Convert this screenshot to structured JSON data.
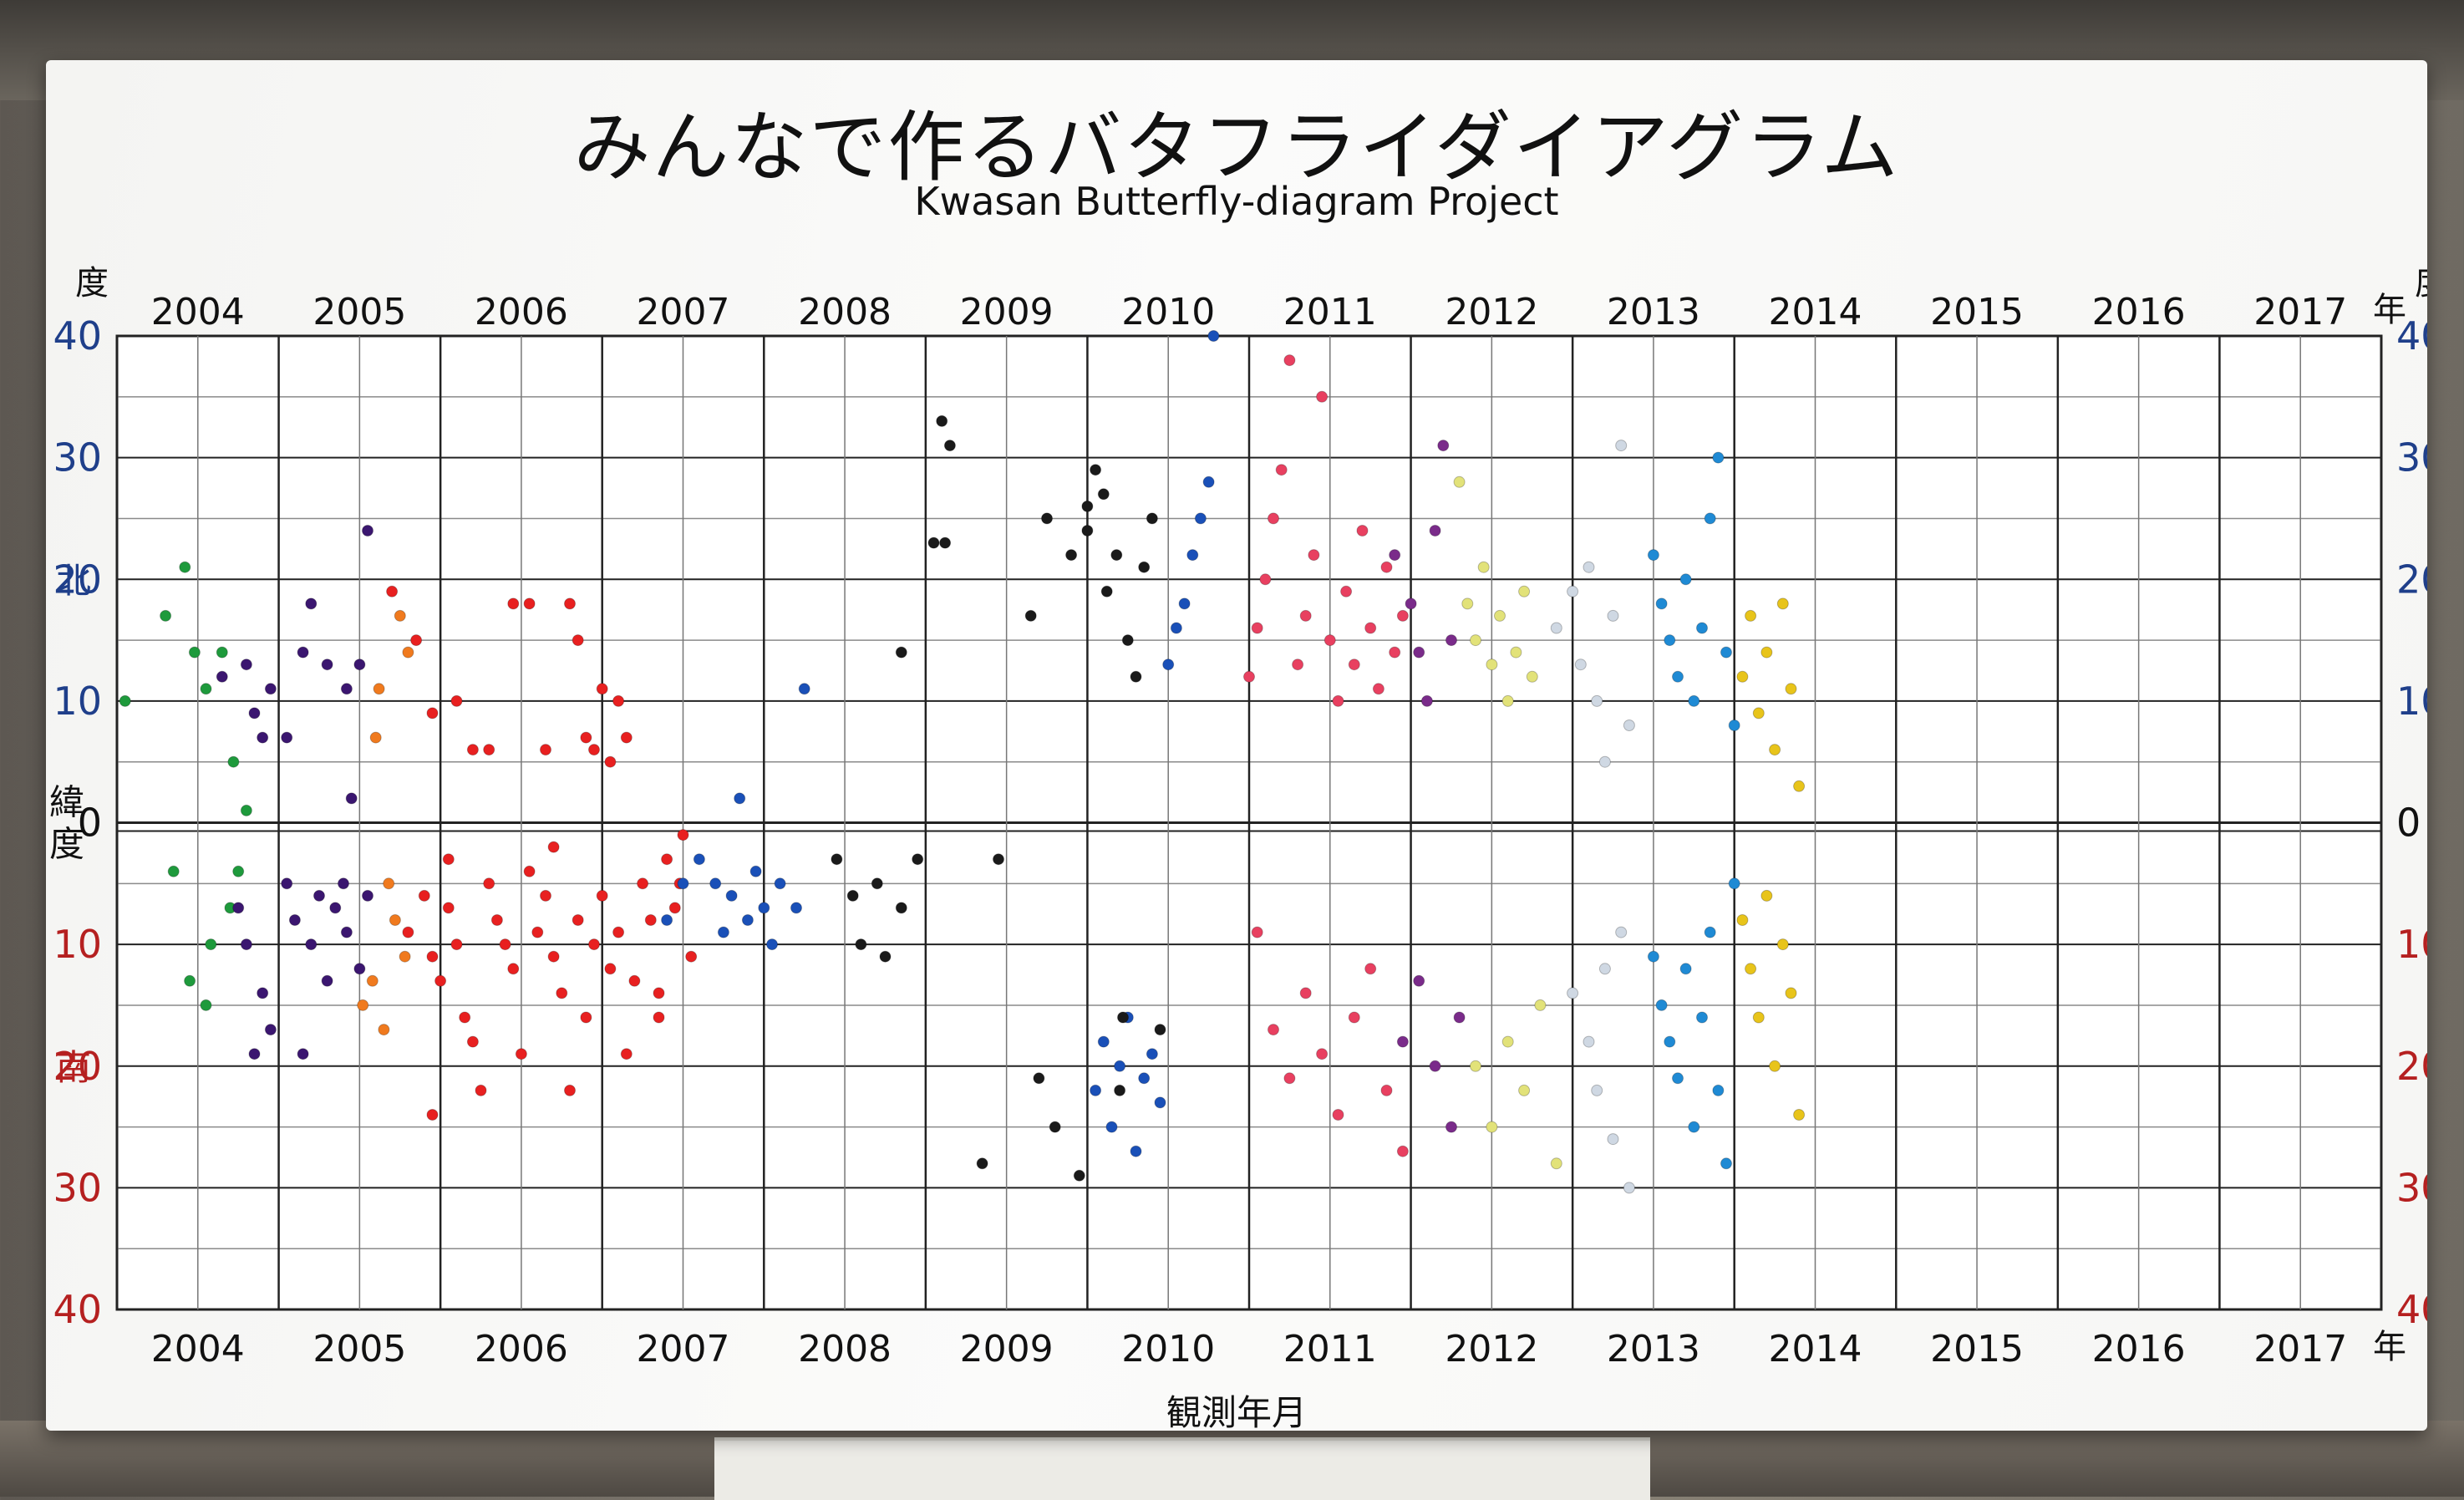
{
  "title": "みんなで作るバタフライダイアグラム",
  "subtitle": "Kwasan Butterfly-diagram Project",
  "colors": {
    "north_label": "#1f3f8a",
    "south_label": "#b52020",
    "grid_major": "#222222",
    "grid_minor": "#c8c8c8"
  },
  "chart_data": {
    "type": "scatter",
    "title": "みんなで作るバタフライダイアグラム",
    "subtitle": "Kwasan Butterfly-diagram Project",
    "xlabel": "観測年月",
    "years": [
      "2004",
      "2005",
      "2006",
      "2007",
      "2008",
      "2009",
      "2010",
      "2011",
      "2012",
      "2013",
      "2014",
      "2015",
      "2016",
      "2017"
    ],
    "year_suffix": "年",
    "y_axis_unit": "度",
    "y_axis_label": "緯度",
    "north_label": "北",
    "south_label": "南",
    "north_ticks": [
      "40",
      "30",
      "20",
      "10"
    ],
    "zero_tick": "0",
    "south_ticks": [
      "10",
      "20",
      "30",
      "40"
    ],
    "xlim": [
      2004,
      2018
    ],
    "ylim": [
      -40,
      40
    ],
    "grid": true,
    "y_direction": "north positive (top), south negative (bottom)",
    "series": [
      {
        "color": "#1e9a3c",
        "points": [
          [
            2004.05,
            10
          ],
          [
            2004.3,
            17
          ],
          [
            2004.42,
            21
          ],
          [
            2004.48,
            14
          ],
          [
            2004.55,
            11
          ],
          [
            2004.65,
            14
          ],
          [
            2004.7,
            -7
          ],
          [
            2004.58,
            -10
          ],
          [
            2004.45,
            -13
          ],
          [
            2004.35,
            -4
          ],
          [
            2004.55,
            -15
          ],
          [
            2004.72,
            5
          ],
          [
            2004.8,
            1
          ],
          [
            2004.75,
            -4
          ]
        ]
      },
      {
        "color": "#3b1670",
        "points": [
          [
            2004.65,
            12
          ],
          [
            2004.8,
            13
          ],
          [
            2004.85,
            9
          ],
          [
            2004.95,
            11
          ],
          [
            2004.9,
            7
          ],
          [
            2005.05,
            7
          ],
          [
            2005.15,
            14
          ],
          [
            2005.2,
            18
          ],
          [
            2005.3,
            13
          ],
          [
            2005.42,
            11
          ],
          [
            2005.5,
            13
          ],
          [
            2005.55,
            24
          ],
          [
            2004.75,
            -7
          ],
          [
            2004.8,
            -10
          ],
          [
            2004.9,
            -14
          ],
          [
            2004.95,
            -17
          ],
          [
            2004.85,
            -19
          ],
          [
            2005.05,
            -5
          ],
          [
            2005.1,
            -8
          ],
          [
            2005.2,
            -10
          ],
          [
            2005.25,
            -6
          ],
          [
            2005.35,
            -7
          ],
          [
            2005.42,
            -9
          ],
          [
            2005.5,
            -12
          ],
          [
            2005.4,
            -5
          ],
          [
            2005.55,
            -6
          ],
          [
            2005.3,
            -13
          ],
          [
            2005.15,
            -19
          ],
          [
            2005.45,
            2
          ]
        ]
      },
      {
        "color": "#f07a1e",
        "points": [
          [
            2005.62,
            11
          ],
          [
            2005.75,
            17
          ],
          [
            2005.8,
            14
          ],
          [
            2005.6,
            7
          ],
          [
            2005.68,
            -5
          ],
          [
            2005.72,
            -8
          ],
          [
            2005.58,
            -13
          ],
          [
            2005.65,
            -17
          ],
          [
            2005.52,
            -15
          ],
          [
            2005.78,
            -11
          ]
        ]
      },
      {
        "color": "#e82020",
        "points": [
          [
            2005.7,
            19
          ],
          [
            2005.85,
            15
          ],
          [
            2005.95,
            9
          ],
          [
            2006.1,
            10
          ],
          [
            2006.2,
            6
          ],
          [
            2006.3,
            6
          ],
          [
            2006.45,
            18
          ],
          [
            2006.55,
            18
          ],
          [
            2006.65,
            6
          ],
          [
            2006.85,
            15
          ],
          [
            2006.9,
            7
          ],
          [
            2006.8,
            18
          ],
          [
            2007.05,
            5
          ],
          [
            2007.0,
            11
          ],
          [
            2006.95,
            6
          ],
          [
            2007.1,
            10
          ],
          [
            2007.15,
            7
          ],
          [
            2005.8,
            -9
          ],
          [
            2005.9,
            -6
          ],
          [
            2005.95,
            -11
          ],
          [
            2006.0,
            -13
          ],
          [
            2006.05,
            -7
          ],
          [
            2006.1,
            -10
          ],
          [
            2006.15,
            -16
          ],
          [
            2006.2,
            -18
          ],
          [
            2006.25,
            -22
          ],
          [
            2006.3,
            -5
          ],
          [
            2006.35,
            -8
          ],
          [
            2006.4,
            -10
          ],
          [
            2006.45,
            -12
          ],
          [
            2006.5,
            -19
          ],
          [
            2006.55,
            -4
          ],
          [
            2006.6,
            -9
          ],
          [
            2006.65,
            -6
          ],
          [
            2006.7,
            -11
          ],
          [
            2006.75,
            -14
          ],
          [
            2006.8,
            -22
          ],
          [
            2006.85,
            -8
          ],
          [
            2006.9,
            -16
          ],
          [
            2006.95,
            -10
          ],
          [
            2007.0,
            -6
          ],
          [
            2007.05,
            -12
          ],
          [
            2007.1,
            -9
          ],
          [
            2007.15,
            -19
          ],
          [
            2007.2,
            -13
          ],
          [
            2007.25,
            -5
          ],
          [
            2007.3,
            -8
          ],
          [
            2007.35,
            -14
          ],
          [
            2007.4,
            -3
          ],
          [
            2007.45,
            -7
          ],
          [
            2007.5,
            -1
          ],
          [
            2007.55,
            -11
          ],
          [
            2005.95,
            -24
          ],
          [
            2006.05,
            -3
          ],
          [
            2006.7,
            -2
          ],
          [
            2007.48,
            -5
          ],
          [
            2007.35,
            -16
          ]
        ]
      },
      {
        "color": "#1a50b8",
        "points": [
          [
            2007.4,
            -8
          ],
          [
            2007.5,
            -5
          ],
          [
            2007.6,
            -3
          ],
          [
            2007.7,
            -5
          ],
          [
            2007.75,
            -9
          ],
          [
            2007.8,
            -6
          ],
          [
            2007.85,
            2
          ],
          [
            2007.9,
            -8
          ],
          [
            2007.95,
            -4
          ],
          [
            2008.0,
            -7
          ],
          [
            2008.05,
            -10
          ],
          [
            2008.1,
            -5
          ],
          [
            2008.2,
            -7
          ],
          [
            2008.25,
            11
          ],
          [
            2010.05,
            -22
          ],
          [
            2010.1,
            -18
          ],
          [
            2010.15,
            -25
          ],
          [
            2010.2,
            -20
          ],
          [
            2010.25,
            -16
          ],
          [
            2010.3,
            -27
          ],
          [
            2010.35,
            -21
          ],
          [
            2010.4,
            -19
          ],
          [
            2010.45,
            -23
          ],
          [
            2010.55,
            16
          ],
          [
            2010.6,
            18
          ],
          [
            2010.65,
            22
          ],
          [
            2010.7,
            25
          ],
          [
            2010.75,
            28
          ],
          [
            2010.78,
            40
          ],
          [
            2010.5,
            13
          ]
        ]
      },
      {
        "color": "#1a1a1a",
        "points": [
          [
            2008.45,
            -3
          ],
          [
            2008.55,
            -6
          ],
          [
            2008.6,
            -10
          ],
          [
            2008.7,
            -5
          ],
          [
            2008.75,
            -11
          ],
          [
            2008.85,
            -7
          ],
          [
            2008.95,
            -3
          ],
          [
            2008.85,
            14
          ],
          [
            2009.05,
            23
          ],
          [
            2009.1,
            33
          ],
          [
            2009.15,
            31
          ],
          [
            2009.12,
            23
          ],
          [
            2009.35,
            -28
          ],
          [
            2009.45,
            -3
          ],
          [
            2009.65,
            17
          ],
          [
            2009.7,
            -21
          ],
          [
            2009.75,
            25
          ],
          [
            2009.8,
            -25
          ],
          [
            2009.9,
            22
          ],
          [
            2009.95,
            -29
          ],
          [
            2010.0,
            24
          ],
          [
            2010.0,
            26
          ],
          [
            2010.05,
            29
          ],
          [
            2010.1,
            27
          ],
          [
            2010.12,
            19
          ],
          [
            2010.18,
            22
          ],
          [
            2010.2,
            -22
          ],
          [
            2010.22,
            -16
          ],
          [
            2010.25,
            15
          ],
          [
            2010.3,
            12
          ],
          [
            2010.35,
            21
          ],
          [
            2010.4,
            25
          ],
          [
            2010.45,
            -17
          ]
        ]
      },
      {
        "color": "#e84060",
        "points": [
          [
            2011.0,
            12
          ],
          [
            2011.05,
            16
          ],
          [
            2011.1,
            20
          ],
          [
            2011.15,
            25
          ],
          [
            2011.2,
            29
          ],
          [
            2011.25,
            38
          ],
          [
            2011.3,
            13
          ],
          [
            2011.35,
            17
          ],
          [
            2011.4,
            22
          ],
          [
            2011.45,
            35
          ],
          [
            2011.5,
            15
          ],
          [
            2011.55,
            10
          ],
          [
            2011.6,
            19
          ],
          [
            2011.65,
            13
          ],
          [
            2011.7,
            24
          ],
          [
            2011.75,
            16
          ],
          [
            2011.8,
            11
          ],
          [
            2011.85,
            21
          ],
          [
            2011.9,
            14
          ],
          [
            2011.95,
            17
          ],
          [
            2011.05,
            -9
          ],
          [
            2011.15,
            -17
          ],
          [
            2011.25,
            -21
          ],
          [
            2011.35,
            -14
          ],
          [
            2011.45,
            -19
          ],
          [
            2011.55,
            -24
          ],
          [
            2011.65,
            -16
          ],
          [
            2011.75,
            -12
          ],
          [
            2011.85,
            -22
          ],
          [
            2011.95,
            -27
          ]
        ]
      },
      {
        "color": "#7a2b8a",
        "points": [
          [
            2011.9,
            22
          ],
          [
            2012.0,
            18
          ],
          [
            2012.05,
            14
          ],
          [
            2012.1,
            10
          ],
          [
            2012.15,
            24
          ],
          [
            2012.2,
            31
          ],
          [
            2012.25,
            15
          ],
          [
            2011.95,
            -18
          ],
          [
            2012.05,
            -13
          ],
          [
            2012.15,
            -20
          ],
          [
            2012.25,
            -25
          ],
          [
            2012.3,
            -16
          ]
        ]
      },
      {
        "color": "#e2e279",
        "points": [
          [
            2012.3,
            28
          ],
          [
            2012.35,
            18
          ],
          [
            2012.4,
            15
          ],
          [
            2012.45,
            21
          ],
          [
            2012.5,
            13
          ],
          [
            2012.55,
            17
          ],
          [
            2012.6,
            10
          ],
          [
            2012.65,
            14
          ],
          [
            2012.7,
            19
          ],
          [
            2012.75,
            12
          ],
          [
            2012.4,
            -20
          ],
          [
            2012.5,
            -25
          ],
          [
            2012.6,
            -18
          ],
          [
            2012.7,
            -22
          ],
          [
            2012.8,
            -15
          ],
          [
            2012.9,
            -28
          ]
        ]
      },
      {
        "color": "#cfd8e3",
        "points": [
          [
            2012.9,
            16
          ],
          [
            2013.0,
            19
          ],
          [
            2013.05,
            13
          ],
          [
            2013.1,
            21
          ],
          [
            2013.15,
            10
          ],
          [
            2013.2,
            5
          ],
          [
            2013.25,
            17
          ],
          [
            2013.3,
            31
          ],
          [
            2013.35,
            8
          ],
          [
            2013.0,
            -14
          ],
          [
            2013.1,
            -18
          ],
          [
            2013.15,
            -22
          ],
          [
            2013.2,
            -12
          ],
          [
            2013.25,
            -26
          ],
          [
            2013.3,
            -9
          ],
          [
            2013.35,
            -30
          ]
        ]
      },
      {
        "color": "#1f8ad4",
        "points": [
          [
            2013.5,
            22
          ],
          [
            2013.55,
            18
          ],
          [
            2013.6,
            15
          ],
          [
            2013.65,
            12
          ],
          [
            2013.7,
            20
          ],
          [
            2013.75,
            10
          ],
          [
            2013.8,
            16
          ],
          [
            2013.85,
            25
          ],
          [
            2013.9,
            30
          ],
          [
            2013.95,
            14
          ],
          [
            2014.0,
            8
          ],
          [
            2013.5,
            -11
          ],
          [
            2013.55,
            -15
          ],
          [
            2013.6,
            -18
          ],
          [
            2013.65,
            -21
          ],
          [
            2013.7,
            -12
          ],
          [
            2013.75,
            -25
          ],
          [
            2013.8,
            -16
          ],
          [
            2013.85,
            -9
          ],
          [
            2013.9,
            -22
          ],
          [
            2013.95,
            -28
          ],
          [
            2014.0,
            -5
          ]
        ]
      },
      {
        "color": "#e8c41a",
        "points": [
          [
            2014.05,
            12
          ],
          [
            2014.1,
            17
          ],
          [
            2014.15,
            9
          ],
          [
            2014.2,
            14
          ],
          [
            2014.25,
            6
          ],
          [
            2014.3,
            18
          ],
          [
            2014.35,
            11
          ],
          [
            2014.4,
            3
          ],
          [
            2014.05,
            -8
          ],
          [
            2014.1,
            -12
          ],
          [
            2014.15,
            -16
          ],
          [
            2014.2,
            -6
          ],
          [
            2014.25,
            -20
          ],
          [
            2014.3,
            -10
          ],
          [
            2014.35,
            -14
          ],
          [
            2014.4,
            -24
          ]
        ]
      }
    ]
  }
}
